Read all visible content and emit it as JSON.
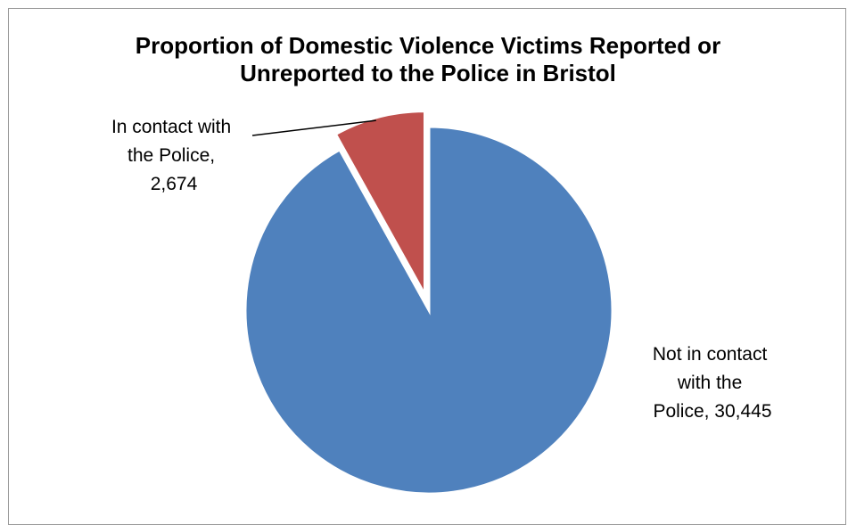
{
  "chart_data": {
    "type": "pie",
    "title_lines": [
      "Proportion of Domestic Violence Victims Reported or",
      "Unreported to the Police in Bristol"
    ],
    "slices": [
      {
        "name": "In contact with the Police",
        "value": 2674,
        "label_lines": [
          "In contact with",
          "the Police,",
          "2,674"
        ],
        "color": "#C0504D"
      },
      {
        "name": "Not in contact with the Police",
        "value": 30445,
        "label_lines": [
          "Not in contact",
          "with the",
          "Police, 30,445"
        ],
        "color": "#4F81BD"
      }
    ]
  }
}
